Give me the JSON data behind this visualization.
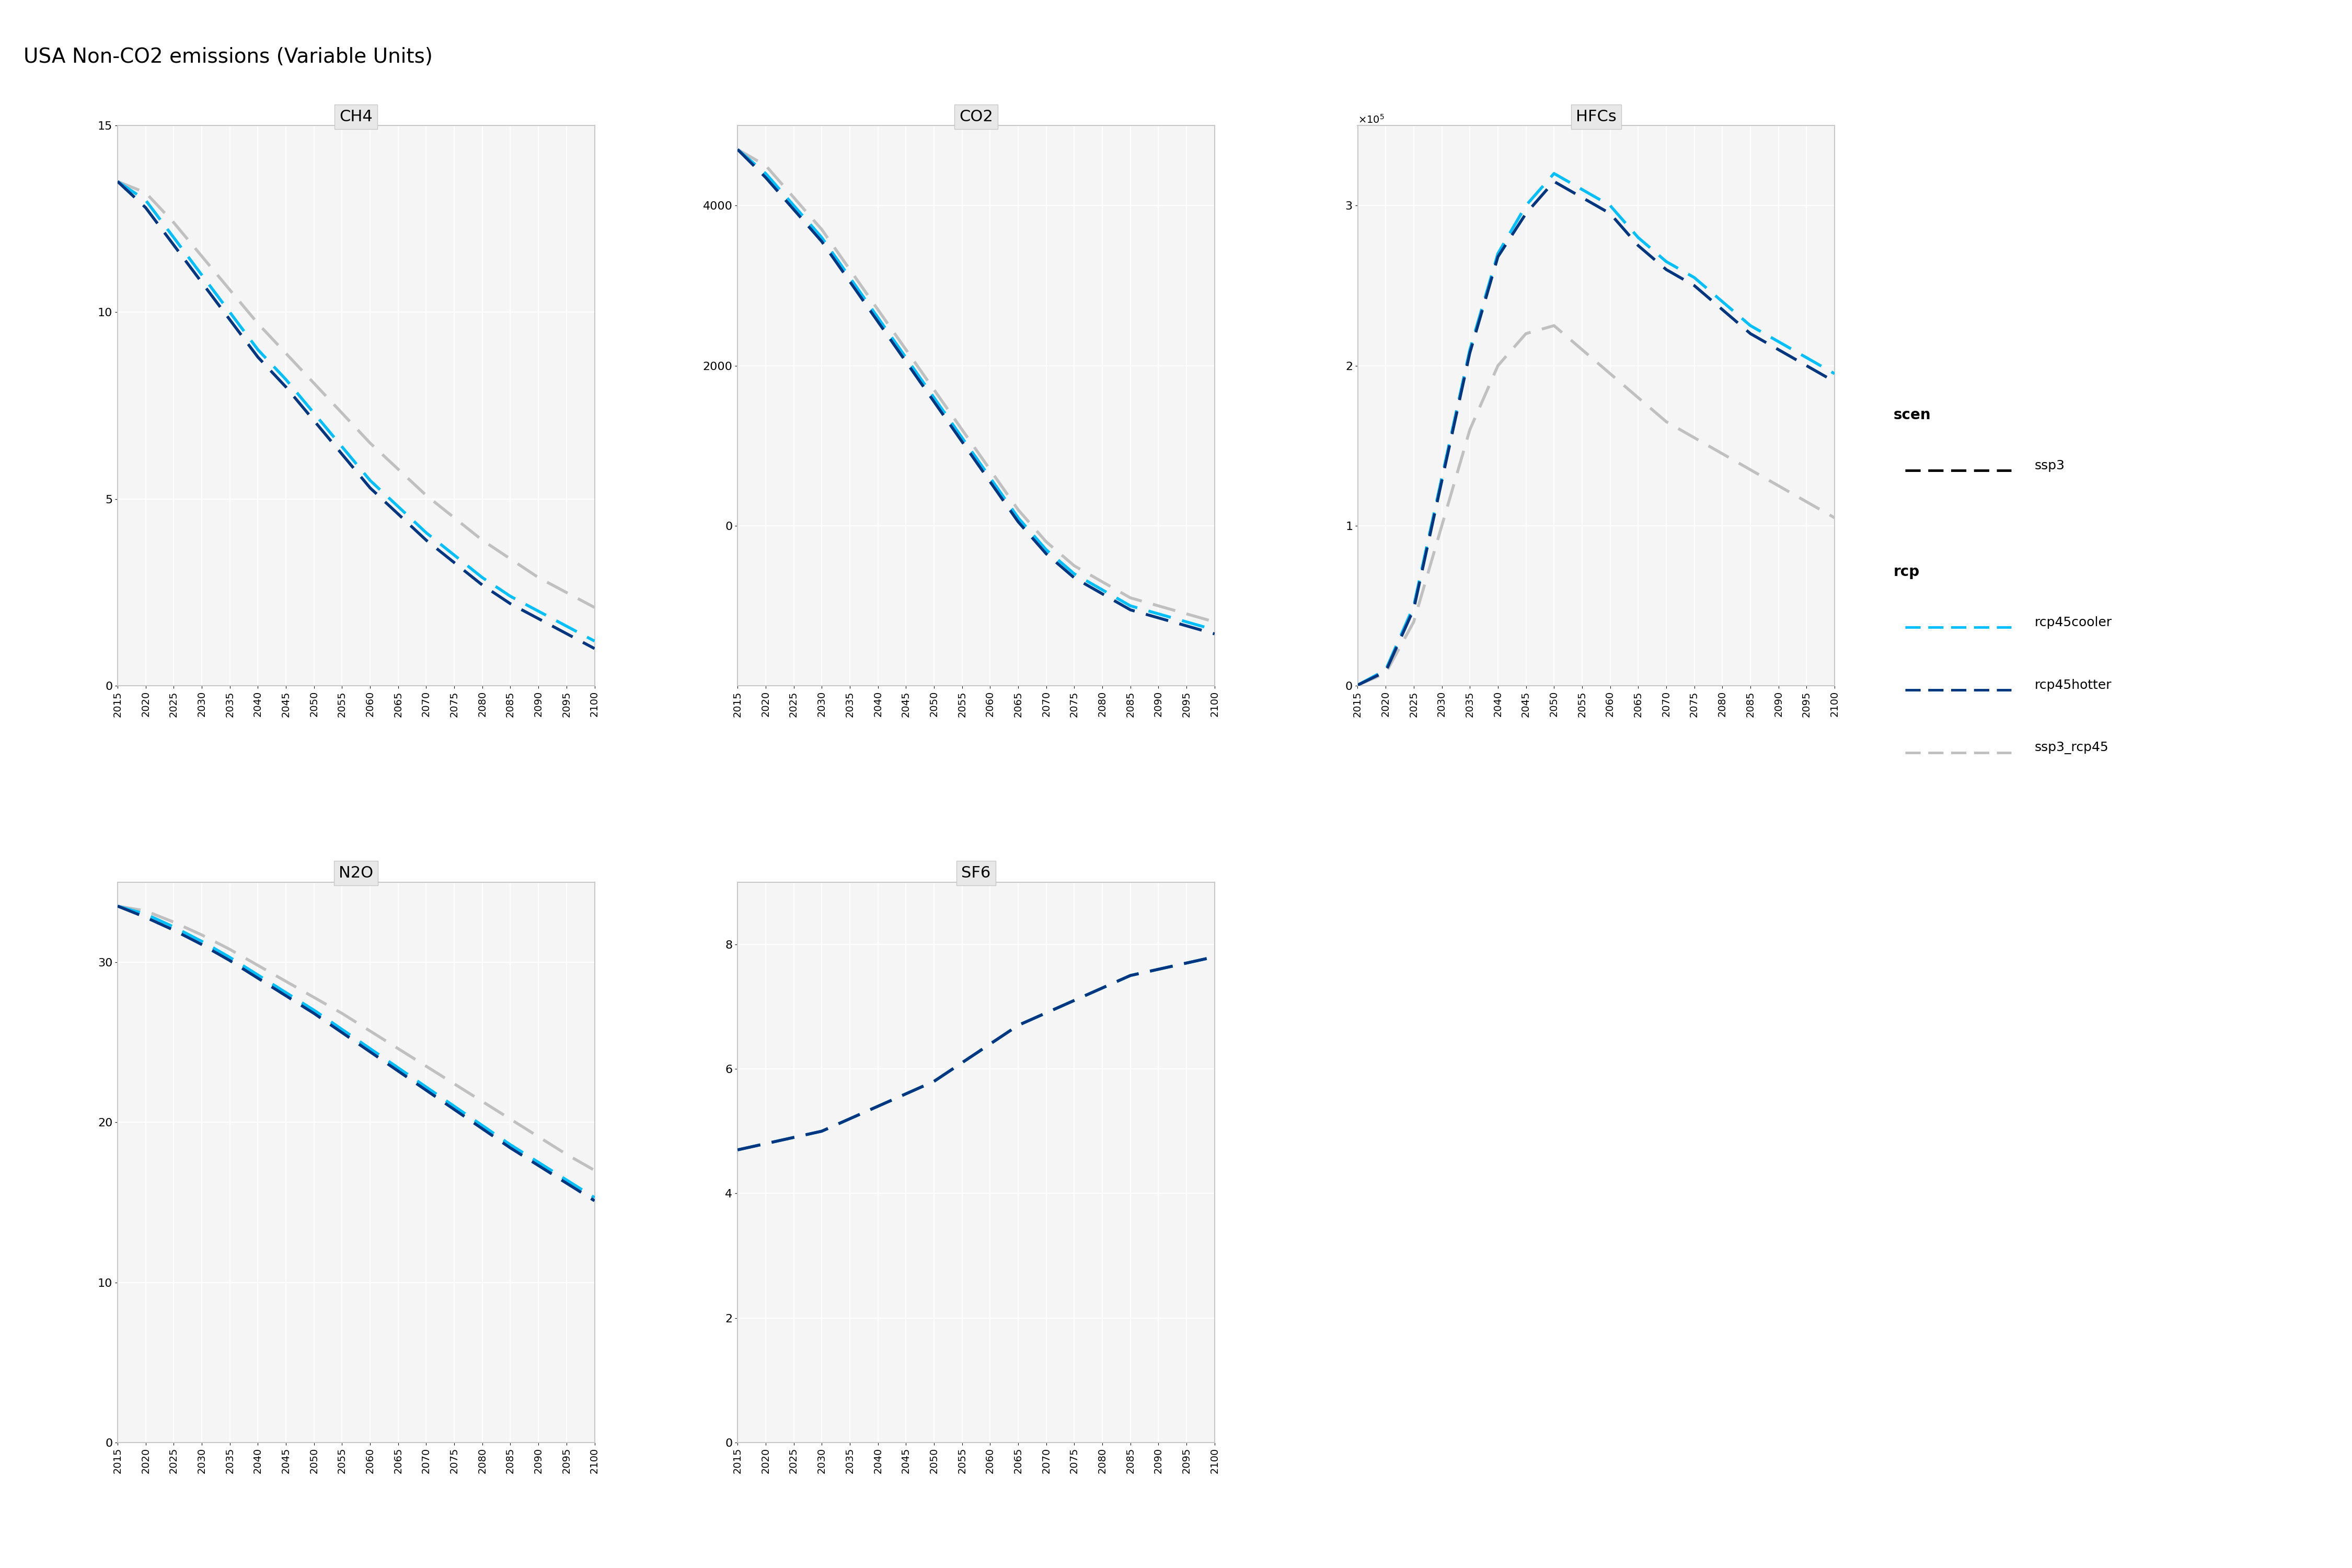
{
  "title": "USA Non-CO2 emissions (Variable Units)",
  "years": [
    2015,
    2020,
    2025,
    2030,
    2035,
    2040,
    2045,
    2050,
    2055,
    2060,
    2065,
    2070,
    2075,
    2080,
    2085,
    2090,
    2095,
    2100
  ],
  "panels": {
    "CH4": {
      "rcp45cooler": [
        13.5,
        13.0,
        12.0,
        11.0,
        10.0,
        9.0,
        8.2,
        7.3,
        6.4,
        5.5,
        4.8,
        4.1,
        3.5,
        2.9,
        2.4,
        2.0,
        1.6,
        1.2
      ],
      "rcp45hotter": [
        13.5,
        12.8,
        11.8,
        10.8,
        9.8,
        8.8,
        8.0,
        7.1,
        6.2,
        5.3,
        4.6,
        3.9,
        3.3,
        2.7,
        2.2,
        1.8,
        1.4,
        1.0
      ],
      "ssp3_rcp45": [
        13.5,
        13.2,
        12.4,
        11.5,
        10.6,
        9.7,
        8.9,
        8.1,
        7.3,
        6.5,
        5.8,
        5.1,
        4.5,
        3.9,
        3.4,
        2.9,
        2.5,
        2.1
      ],
      "ylim": [
        0,
        15
      ],
      "yticks": [
        0,
        5,
        10,
        15
      ]
    },
    "CO2": {
      "rcp45cooler": [
        4700,
        4400,
        4000,
        3600,
        3100,
        2600,
        2100,
        1600,
        1100,
        600,
        100,
        -300,
        -600,
        -800,
        -1000,
        -1100,
        -1200,
        -1300
      ],
      "rcp45hotter": [
        4700,
        4350,
        3950,
        3550,
        3050,
        2550,
        2050,
        1550,
        1050,
        550,
        50,
        -350,
        -650,
        -850,
        -1050,
        -1150,
        -1250,
        -1350
      ],
      "ssp3_rcp45": [
        4700,
        4500,
        4100,
        3700,
        3200,
        2700,
        2200,
        1700,
        1200,
        700,
        200,
        -200,
        -500,
        -700,
        -900,
        -1000,
        -1100,
        -1200
      ],
      "ylim": [
        -2000,
        5000
      ],
      "yticks": [
        0,
        2000,
        4000
      ]
    },
    "HFCs": {
      "rcp45cooler": [
        500,
        10000,
        50000,
        130000,
        210000,
        270000,
        300000,
        320000,
        310000,
        300000,
        280000,
        265000,
        255000,
        240000,
        225000,
        215000,
        205000,
        195000
      ],
      "rcp45hotter": [
        500,
        9000,
        48000,
        128000,
        208000,
        268000,
        295000,
        315000,
        305000,
        295000,
        275000,
        260000,
        250000,
        235000,
        220000,
        210000,
        200000,
        190000
      ],
      "ssp3_rcp45": [
        500,
        8000,
        40000,
        100000,
        160000,
        200000,
        220000,
        225000,
        210000,
        195000,
        180000,
        165000,
        155000,
        145000,
        135000,
        125000,
        115000,
        105000
      ],
      "ylim": [
        0,
        350000
      ],
      "yticks": [
        0,
        100000,
        200000,
        300000
      ]
    },
    "N2O": {
      "rcp45cooler": [
        33.5,
        33.0,
        32.2,
        31.3,
        30.3,
        29.2,
        28.1,
        27.0,
        25.8,
        24.6,
        23.4,
        22.2,
        21.0,
        19.8,
        18.6,
        17.5,
        16.4,
        15.3
      ],
      "rcp45hotter": [
        33.5,
        32.8,
        32.0,
        31.1,
        30.1,
        29.0,
        27.9,
        26.8,
        25.6,
        24.4,
        23.2,
        22.0,
        20.8,
        19.6,
        18.4,
        17.3,
        16.2,
        15.1
      ],
      "ssp3_rcp45": [
        33.5,
        33.2,
        32.5,
        31.7,
        30.8,
        29.8,
        28.8,
        27.8,
        26.8,
        25.7,
        24.6,
        23.5,
        22.4,
        21.3,
        20.2,
        19.1,
        18.0,
        17.0
      ],
      "ylim": [
        0,
        35
      ],
      "yticks": [
        0,
        10,
        20,
        30
      ]
    },
    "SF6": {
      "rcp45cooler": [
        4.7,
        4.8,
        4.9,
        5.0,
        5.2,
        5.4,
        5.6,
        5.8,
        6.1,
        6.4,
        6.7,
        6.9,
        7.1,
        7.3,
        7.5,
        7.6,
        7.7,
        7.8
      ],
      "rcp45hotter": [
        4.7,
        4.8,
        4.9,
        5.0,
        5.2,
        5.4,
        5.6,
        5.8,
        6.1,
        6.4,
        6.7,
        6.9,
        7.1,
        7.3,
        7.5,
        7.6,
        7.7,
        7.8
      ],
      "ssp3_rcp45": [
        4.7,
        4.8,
        4.9,
        5.0,
        5.2,
        5.4,
        5.6,
        5.8,
        6.1,
        6.4,
        6.7,
        6.9,
        7.1,
        7.3,
        7.5,
        7.6,
        7.7,
        7.8
      ],
      "ylim": [
        0,
        9
      ],
      "yticks": [
        0,
        2,
        4,
        6,
        8
      ]
    }
  },
  "colors": {
    "rcp45cooler": "#00BFFF",
    "rcp45hotter": "#003580",
    "ssp3_rcp45": "#C0C0C0"
  },
  "panel_order": [
    "CH4",
    "CO2",
    "HFCs",
    "N2O",
    "SF6"
  ],
  "panel_bg": "#F5F5F5",
  "grid_color": "#FFFFFF",
  "border_color": "#C8C8C8"
}
